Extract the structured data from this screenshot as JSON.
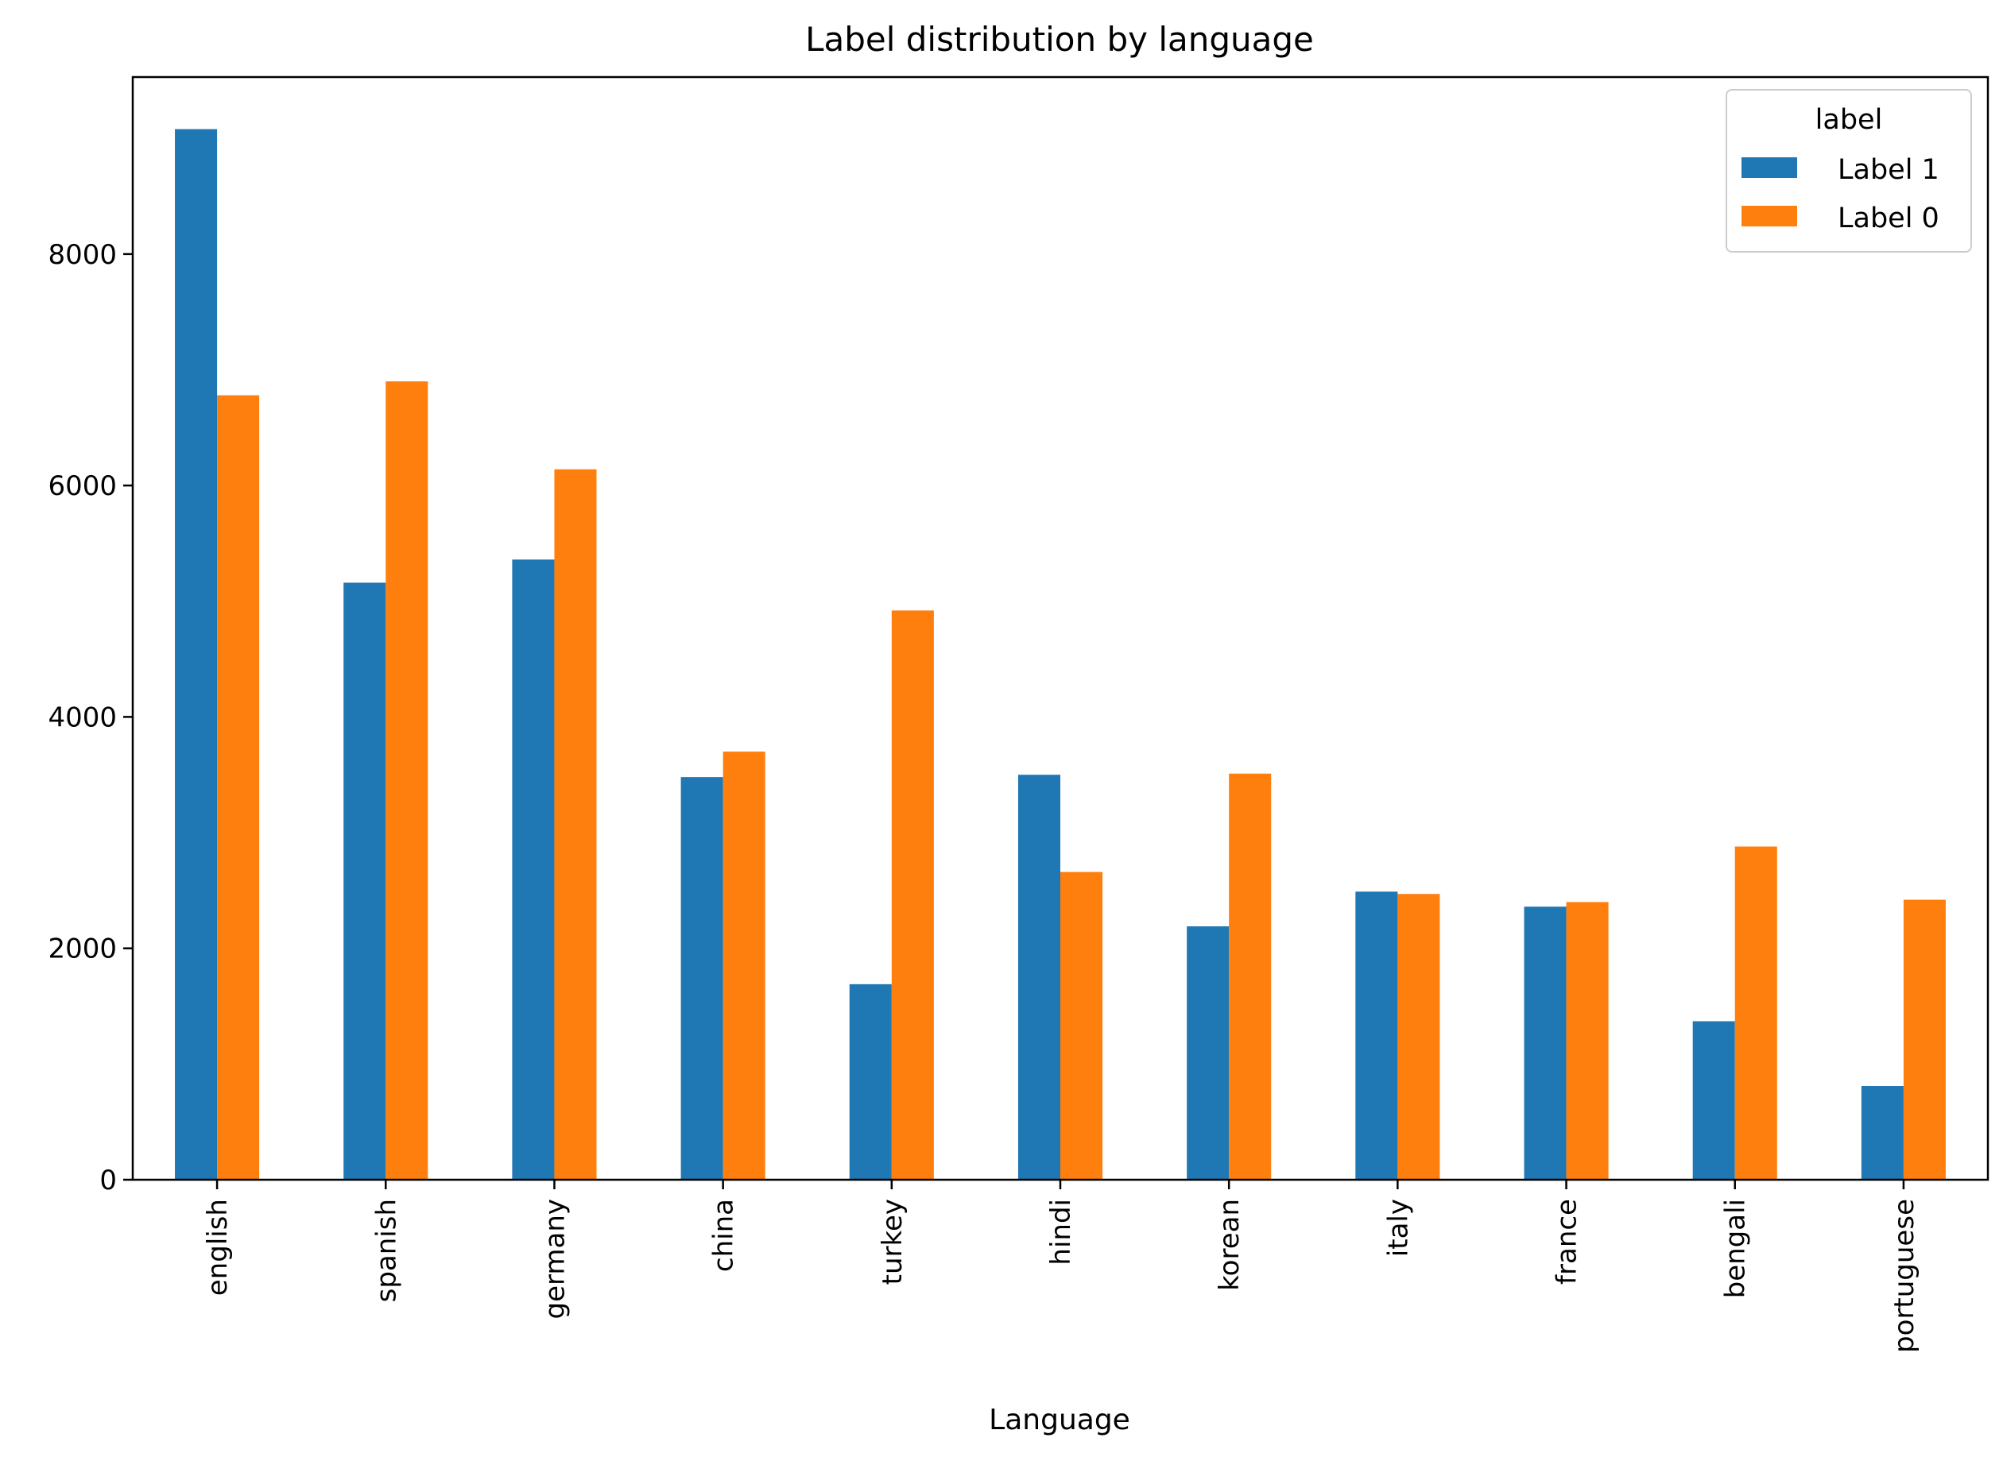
{
  "chart_data": {
    "type": "bar",
    "title": "Label distribution by language",
    "xlabel": "Language",
    "ylabel": "",
    "categories": [
      "english",
      "spanish",
      "germany",
      "china",
      "turkey",
      "hindi",
      "korean",
      "italy",
      "france",
      "bengali",
      "portuguese"
    ],
    "series": [
      {
        "name": "Label 1",
        "color": "#1f77b4",
        "values": [
          9080,
          5160,
          5360,
          3480,
          1690,
          3500,
          2190,
          2490,
          2360,
          1370,
          810
        ]
      },
      {
        "name": "Label 0",
        "color": "#ff7f0e",
        "values": [
          6780,
          6900,
          6140,
          3700,
          4920,
          2660,
          3510,
          2470,
          2400,
          2880,
          2420
        ]
      }
    ],
    "ylim": [
      0,
      9530
    ],
    "yticks": [
      0,
      2000,
      4000,
      6000,
      8000
    ],
    "legend": {
      "title": "label",
      "position": "top-right"
    },
    "grid": false
  }
}
